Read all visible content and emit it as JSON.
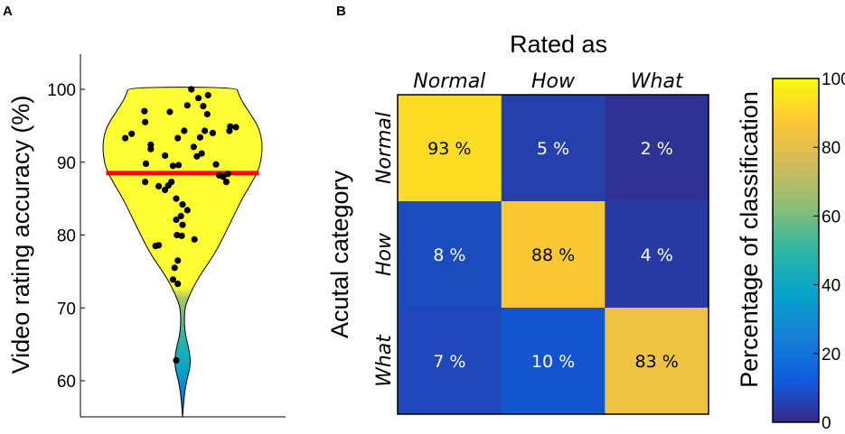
{
  "panels": {
    "a": "A",
    "b": "B"
  },
  "colors": {
    "violin_fill": "#ffff33",
    "violin_stroke": "#000000",
    "mean_line": "#ff0000",
    "dot": "#000000",
    "text_light": "#ffffff",
    "text_dark": "#000000"
  },
  "chart_data": [
    {
      "type": "violin",
      "ylabel": "Video rating accuracy (%)",
      "ylim": [
        55,
        105
      ],
      "yticks": [
        60,
        70,
        80,
        90,
        100
      ],
      "ytick_labels": [
        "60",
        "70",
        "80",
        "90",
        "100"
      ],
      "mean": 88.5,
      "density_profile": [
        {
          "y": 55,
          "w": 0.0
        },
        {
          "y": 58,
          "w": 0.02
        },
        {
          "y": 60,
          "w": 0.05
        },
        {
          "y": 62,
          "w": 0.1
        },
        {
          "y": 64,
          "w": 0.09
        },
        {
          "y": 66,
          "w": 0.04
        },
        {
          "y": 68,
          "w": 0.02
        },
        {
          "y": 70,
          "w": 0.03
        },
        {
          "y": 71,
          "w": 0.06
        },
        {
          "y": 73,
          "w": 0.14
        },
        {
          "y": 75,
          "w": 0.25
        },
        {
          "y": 77,
          "w": 0.38
        },
        {
          "y": 79,
          "w": 0.48
        },
        {
          "y": 81,
          "w": 0.57
        },
        {
          "y": 83,
          "w": 0.66
        },
        {
          "y": 85,
          "w": 0.75
        },
        {
          "y": 87,
          "w": 0.86
        },
        {
          "y": 89,
          "w": 0.96
        },
        {
          "y": 91,
          "w": 1.0
        },
        {
          "y": 93,
          "w": 1.0
        },
        {
          "y": 95,
          "w": 0.95
        },
        {
          "y": 97,
          "w": 0.83
        },
        {
          "y": 98.5,
          "w": 0.74
        },
        {
          "y": 99.5,
          "w": 0.7
        },
        {
          "y": 100.3,
          "w": 0.68
        }
      ],
      "points": [
        {
          "x": -0.72,
          "y": 93.3
        },
        {
          "x": -0.64,
          "y": 93.9
        },
        {
          "x": -0.48,
          "y": 97.0
        },
        {
          "x": -0.47,
          "y": 95.5
        },
        {
          "x": -0.4,
          "y": 92.4
        },
        {
          "x": -0.4,
          "y": 91.8
        },
        {
          "x": -0.46,
          "y": 89.8
        },
        {
          "x": -0.47,
          "y": 87.3
        },
        {
          "x": -0.3,
          "y": 86.7
        },
        {
          "x": -0.22,
          "y": 86.2
        },
        {
          "x": -0.18,
          "y": 86.8
        },
        {
          "x": -0.14,
          "y": 87.3
        },
        {
          "x": -0.22,
          "y": 90.9
        },
        {
          "x": -0.12,
          "y": 89.5
        },
        {
          "x": -0.05,
          "y": 89.6
        },
        {
          "x": -0.16,
          "y": 96.9
        },
        {
          "x": -0.06,
          "y": 93.3
        },
        {
          "x": 0.02,
          "y": 94.3
        },
        {
          "x": 0.06,
          "y": 97.8
        },
        {
          "x": 0.11,
          "y": 100.0
        },
        {
          "x": 0.2,
          "y": 98.8
        },
        {
          "x": 0.26,
          "y": 97.7
        },
        {
          "x": 0.32,
          "y": 99.2
        },
        {
          "x": 0.14,
          "y": 92.1
        },
        {
          "x": 0.22,
          "y": 93.4
        },
        {
          "x": 0.24,
          "y": 91.2
        },
        {
          "x": 0.18,
          "y": 90.8
        },
        {
          "x": 0.28,
          "y": 94.3
        },
        {
          "x": 0.31,
          "y": 96.6
        },
        {
          "x": 0.38,
          "y": 94.0
        },
        {
          "x": 0.46,
          "y": 88.2
        },
        {
          "x": 0.51,
          "y": 88.0
        },
        {
          "x": 0.55,
          "y": 87.3
        },
        {
          "x": 0.59,
          "y": 94.3
        },
        {
          "x": 0.6,
          "y": 94.9
        },
        {
          "x": 0.67,
          "y": 94.8
        },
        {
          "x": 0.42,
          "y": 89.7
        },
        {
          "x": 0.57,
          "y": 88.4
        },
        {
          "x": -0.08,
          "y": 85.0
        },
        {
          "x": 0.0,
          "y": 84.2
        },
        {
          "x": 0.06,
          "y": 83.4
        },
        {
          "x": -0.02,
          "y": 82.6
        },
        {
          "x": -0.08,
          "y": 82.1
        },
        {
          "x": 0.0,
          "y": 81.4
        },
        {
          "x": -0.07,
          "y": 80.0
        },
        {
          "x": -0.01,
          "y": 79.9
        },
        {
          "x": 0.15,
          "y": 79.4
        },
        {
          "x": -0.3,
          "y": 78.6
        },
        {
          "x": -0.34,
          "y": 78.5
        },
        {
          "x": -0.06,
          "y": 76.5
        },
        {
          "x": -0.1,
          "y": 75.5
        },
        {
          "x": -0.12,
          "y": 73.9
        },
        {
          "x": -0.06,
          "y": 73.3
        },
        {
          "x": -0.08,
          "y": 62.8
        }
      ]
    },
    {
      "type": "heatmap",
      "title": "Rated as",
      "ylabel": "Acutal category",
      "x_categories": [
        "Normal",
        "How",
        "What"
      ],
      "y_categories": [
        "Normal",
        "How",
        "What"
      ],
      "values": [
        [
          93,
          5,
          2
        ],
        [
          8,
          88,
          4
        ],
        [
          7,
          10,
          83
        ]
      ],
      "cell_labels": [
        [
          "93 %",
          "5 %",
          "2 %"
        ],
        [
          "8 %",
          "88 %",
          "4 %"
        ],
        [
          "7 %",
          "10 %",
          "83 %"
        ]
      ],
      "colorbar": {
        "label": "Percentage of classification",
        "range": [
          0,
          100
        ],
        "ticks": [
          0,
          20,
          40,
          60,
          80,
          100
        ],
        "tick_labels": [
          "0",
          "20",
          "40",
          "60",
          "80",
          "100"
        ],
        "colormap": "parula"
      }
    }
  ]
}
